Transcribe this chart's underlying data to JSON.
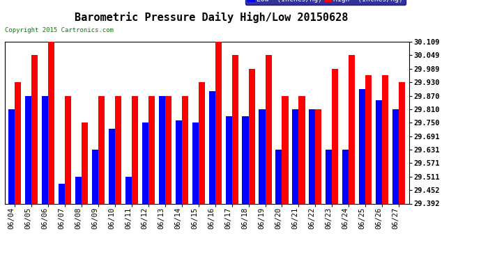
{
  "title": "Barometric Pressure Daily High/Low 20150628",
  "copyright": "Copyright 2015 Cartronics.com",
  "dates": [
    "06/04",
    "06/05",
    "06/06",
    "06/07",
    "06/08",
    "06/09",
    "06/10",
    "06/11",
    "06/12",
    "06/13",
    "06/14",
    "06/15",
    "06/16",
    "06/17",
    "06/18",
    "06/19",
    "06/20",
    "06/21",
    "06/22",
    "06/23",
    "06/24",
    "06/25",
    "06/26",
    "06/27"
  ],
  "low": [
    29.81,
    29.87,
    29.87,
    29.48,
    29.511,
    29.631,
    29.725,
    29.511,
    29.75,
    29.87,
    29.76,
    29.75,
    29.89,
    29.78,
    29.78,
    29.81,
    29.631,
    29.81,
    29.811,
    29.631,
    29.631,
    29.9,
    29.85,
    29.81
  ],
  "high": [
    29.93,
    30.049,
    30.109,
    29.87,
    29.75,
    29.87,
    29.87,
    29.87,
    29.87,
    29.87,
    29.87,
    29.93,
    30.109,
    30.049,
    29.989,
    30.049,
    29.87,
    29.87,
    29.81,
    29.989,
    30.049,
    29.96,
    29.96,
    29.93
  ],
  "ylim_min": 29.392,
  "ylim_max": 30.109,
  "yticks": [
    29.392,
    29.452,
    29.511,
    29.571,
    29.631,
    29.691,
    29.75,
    29.81,
    29.87,
    29.93,
    29.989,
    30.049,
    30.109
  ],
  "bar_width": 0.38,
  "color_low": "#0000FF",
  "color_high": "#FF0000",
  "bg_color": "#FFFFFF",
  "grid_color": "#C0C0C0",
  "title_fontsize": 11,
  "tick_fontsize": 7.5,
  "copyright_fontsize": 6.5,
  "legend_fontsize": 7
}
